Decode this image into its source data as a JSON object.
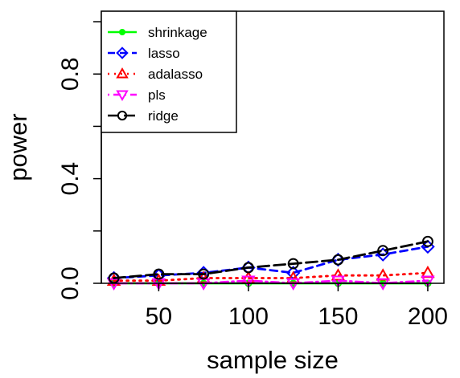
{
  "chart_data": {
    "type": "line",
    "title": "",
    "xlabel": "sample size",
    "ylabel": "power",
    "xlim": [
      18,
      209
    ],
    "ylim": [
      0.0,
      1.04
    ],
    "x_ticks": [
      50,
      100,
      150,
      200
    ],
    "x_tick_labels": [
      "50",
      "100",
      "150",
      "200"
    ],
    "y_ticks": [
      0.0,
      0.4,
      0.8
    ],
    "y_tick_labels": [
      "0.0",
      "0.4",
      "0.8"
    ],
    "y_minor_ticks": [
      0.2,
      0.6,
      1.0
    ],
    "grid": false,
    "legend_position": "top-left",
    "x": [
      25,
      50,
      75,
      100,
      125,
      150,
      175,
      200
    ],
    "series": [
      {
        "name": "shrinkage",
        "color": "#00ff00",
        "line_style": "solid",
        "marker": "filled-circle",
        "values": [
          0.0,
          0.0,
          0.0,
          0.0,
          0.0,
          0.0,
          0.0,
          0.0
        ]
      },
      {
        "name": "lasso",
        "color": "#0000ff",
        "line_style": "dashed",
        "marker": "diamond",
        "values": [
          0.02,
          0.03,
          0.04,
          0.06,
          0.04,
          0.09,
          0.11,
          0.14
        ]
      },
      {
        "name": "adalasso",
        "color": "#ff0000",
        "line_style": "dotted",
        "marker": "triangle-up",
        "values": [
          0.01,
          0.01,
          0.02,
          0.02,
          0.02,
          0.03,
          0.03,
          0.04
        ]
      },
      {
        "name": "pls",
        "color": "#ff00ff",
        "line_style": "dashdot",
        "marker": "triangle-down",
        "values": [
          0.0,
          0.0,
          0.0,
          0.01,
          0.0,
          0.01,
          0.0,
          0.01
        ]
      },
      {
        "name": "ridge",
        "color": "#000000",
        "line_style": "longdash",
        "marker": "circle",
        "values": [
          0.02,
          0.035,
          0.035,
          0.06,
          0.075,
          0.09,
          0.125,
          0.16
        ]
      }
    ]
  }
}
